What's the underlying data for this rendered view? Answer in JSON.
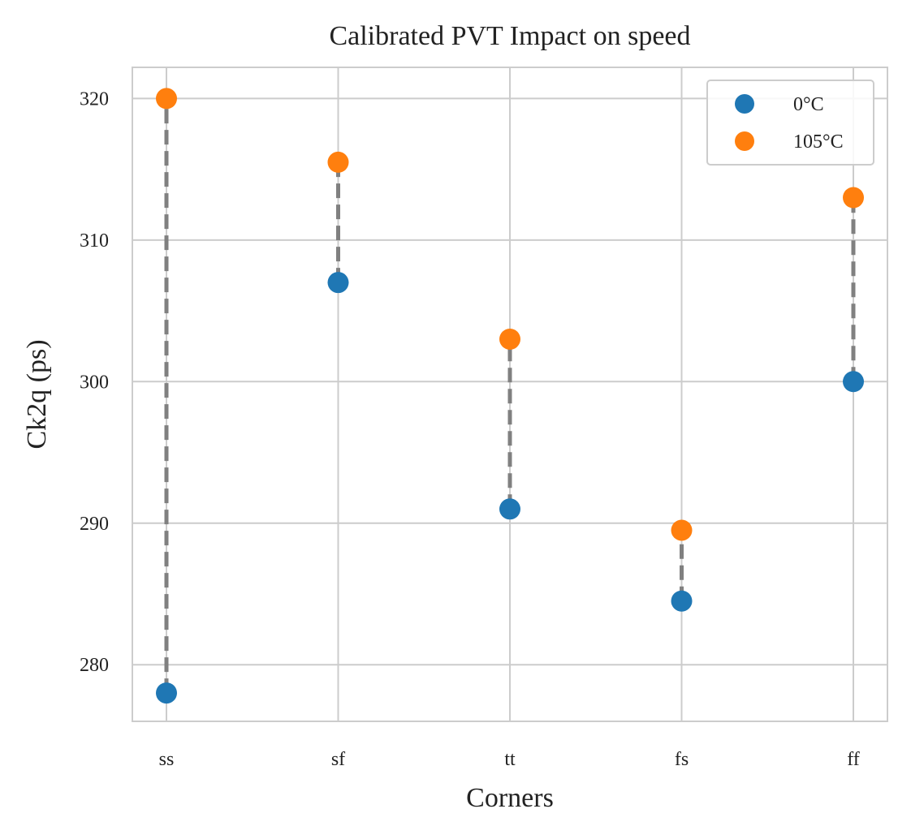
{
  "chart_data": {
    "type": "scatter",
    "title": "Calibrated PVT Impact on speed",
    "xlabel": "Corners",
    "ylabel": "Ck2q (ps)",
    "categories": [
      "ss",
      "sf",
      "tt",
      "fs",
      "ff"
    ],
    "yticks": [
      280,
      290,
      300,
      310,
      320
    ],
    "ylim": [
      276,
      322.2
    ],
    "grid": true,
    "legend_position": "top-right",
    "connector_style": "dashed",
    "connector_color": "#808080",
    "series": [
      {
        "name": "0°C",
        "color": "#1f77b4",
        "values": [
          278,
          307,
          291,
          284.5,
          300
        ]
      },
      {
        "name": "105°C",
        "color": "#ff7f0e",
        "values": [
          320,
          315.5,
          303,
          289.5,
          313
        ]
      }
    ]
  }
}
